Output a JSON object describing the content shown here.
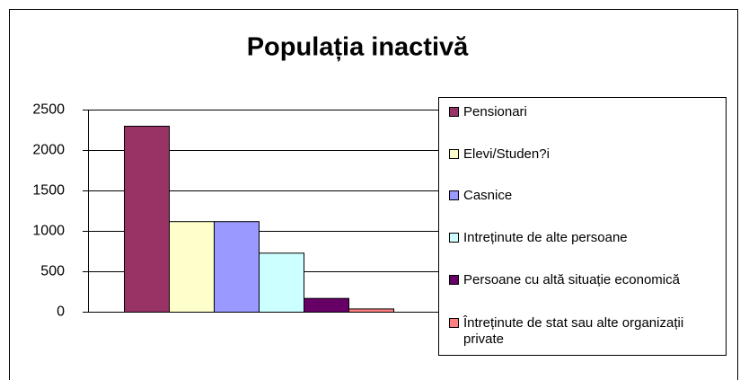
{
  "chart_data": {
    "type": "bar",
    "title": "Populația inactivă",
    "categories": [
      null
    ],
    "series": [
      {
        "name": "Pensionari",
        "color": "#993366",
        "values": [
          2300
        ]
      },
      {
        "name": "Elevi/Studen?i",
        "color": "#FFFFCC",
        "values": [
          1120
        ]
      },
      {
        "name": "Casnice",
        "color": "#9999FF",
        "values": [
          1120
        ]
      },
      {
        "name": "Intreținute de alte persoane",
        "color": "#CCFFFF",
        "values": [
          730
        ]
      },
      {
        "name": "Persoane cu altă situație economică",
        "color": "#660066",
        "values": [
          170
        ]
      },
      {
        "name": "Întreținute de stat sau alte organizații private",
        "color": "#FF8080",
        "values": [
          40
        ]
      }
    ],
    "ylim": [
      0,
      2500
    ],
    "yticks": [
      0,
      500,
      1000,
      1500,
      2000,
      2500
    ],
    "grid": true,
    "legend": "right"
  }
}
